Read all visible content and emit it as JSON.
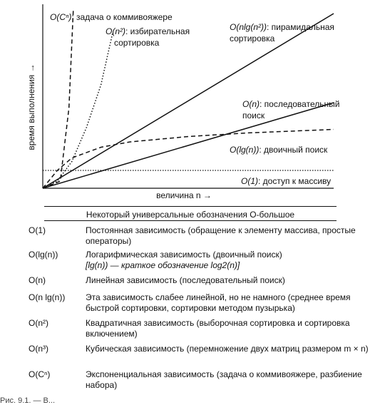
{
  "chart_data": {
    "type": "line",
    "xlabel": "величина n →",
    "ylabel": "время выполнения →",
    "series": [
      {
        "name": "O(Cⁿ): задача о коммивояжере",
        "style": "dashed",
        "points": [
          [
            0,
            0
          ],
          [
            0.06,
            0.04
          ],
          [
            0.09,
            0.45
          ],
          [
            0.105,
            1.0
          ]
        ]
      },
      {
        "name": "O(n²): избирательная сортировка",
        "style": "dotted",
        "points": [
          [
            0,
            0
          ],
          [
            0.05,
            0.04
          ],
          [
            0.1,
            0.15
          ],
          [
            0.15,
            0.34
          ],
          [
            0.2,
            0.58
          ],
          [
            0.24,
            0.87
          ]
        ]
      },
      {
        "name": "O(nlg(n²)): пирамидальная сортировка",
        "style": "solid",
        "points": [
          [
            0,
            0
          ],
          [
            1,
            0.98
          ]
        ]
      },
      {
        "name": "O(n): последовательный поиск",
        "style": "solid",
        "points": [
          [
            0,
            0
          ],
          [
            1,
            0.48
          ]
        ]
      },
      {
        "name": "O(lg(n)): двоичный поиск",
        "style": "dashed",
        "points": [
          [
            0,
            0
          ],
          [
            0.05,
            0.1
          ],
          [
            0.1,
            0.17
          ],
          [
            0.2,
            0.23
          ],
          [
            0.3,
            0.26
          ],
          [
            0.5,
            0.29
          ],
          [
            0.7,
            0.31
          ],
          [
            1,
            0.33
          ]
        ]
      },
      {
        "name": "O(1): доступ к массиву",
        "style": "dotted",
        "points": [
          [
            0,
            0.1
          ],
          [
            1,
            0.1
          ]
        ]
      }
    ],
    "labels": {
      "exp": {
        "sym": "O(Cⁿ)",
        "text": ": задача о коммивояжере"
      },
      "sq": {
        "sym": "O(n²)",
        "text": ": избирательная",
        "text2": "сортировка"
      },
      "nlog": {
        "sym": "O(nlg(n²))",
        "text": ": пирамидальная",
        "text2": "сортировка"
      },
      "lin": {
        "sym": "O(n)",
        "text": ": последовательный",
        "text2": "поиск"
      },
      "log": {
        "sym": "O(lg(n))",
        "text": ": двоичный поиск"
      },
      "const": {
        "sym": "O(1)",
        "text": ": доступ к массиву"
      }
    }
  },
  "table": {
    "title": "Некоторый универсальные обозначения О-большое",
    "rows": [
      {
        "sym": "O(1)",
        "desc": "Постоянная зависимость (обращение к элементу массива, простые операторы)"
      },
      {
        "sym": "O(lg(n))",
        "desc": "Логарифмическая зависимость (двоичный поиск)",
        "sub": "[lg(n)) — краткое обозначение log2(n)]"
      },
      {
        "sym": "O(n)",
        "desc": "Линейная зависимость (последовательный поиск)"
      },
      {
        "sym": "O(n lg(n))",
        "desc": "Эта зависимость слабее линейной, но не намного (среднее время быстрой сортировки, сортировки методом пузырька)"
      },
      {
        "sym": "O(n²)",
        "desc": "Квадратичная зависимость (выборочная сортировка и сортировка включением)"
      },
      {
        "sym": "O(n³)",
        "desc": "Кубическая зависимость (перемножение двух матриц размером m × n)"
      },
      {
        "sym": "O(Cⁿ)",
        "desc": "Экспоненциальная зависимость (задача о коммивояжере, разбиение набора)"
      }
    ]
  },
  "caption": "Рис. 9.1. — В..."
}
